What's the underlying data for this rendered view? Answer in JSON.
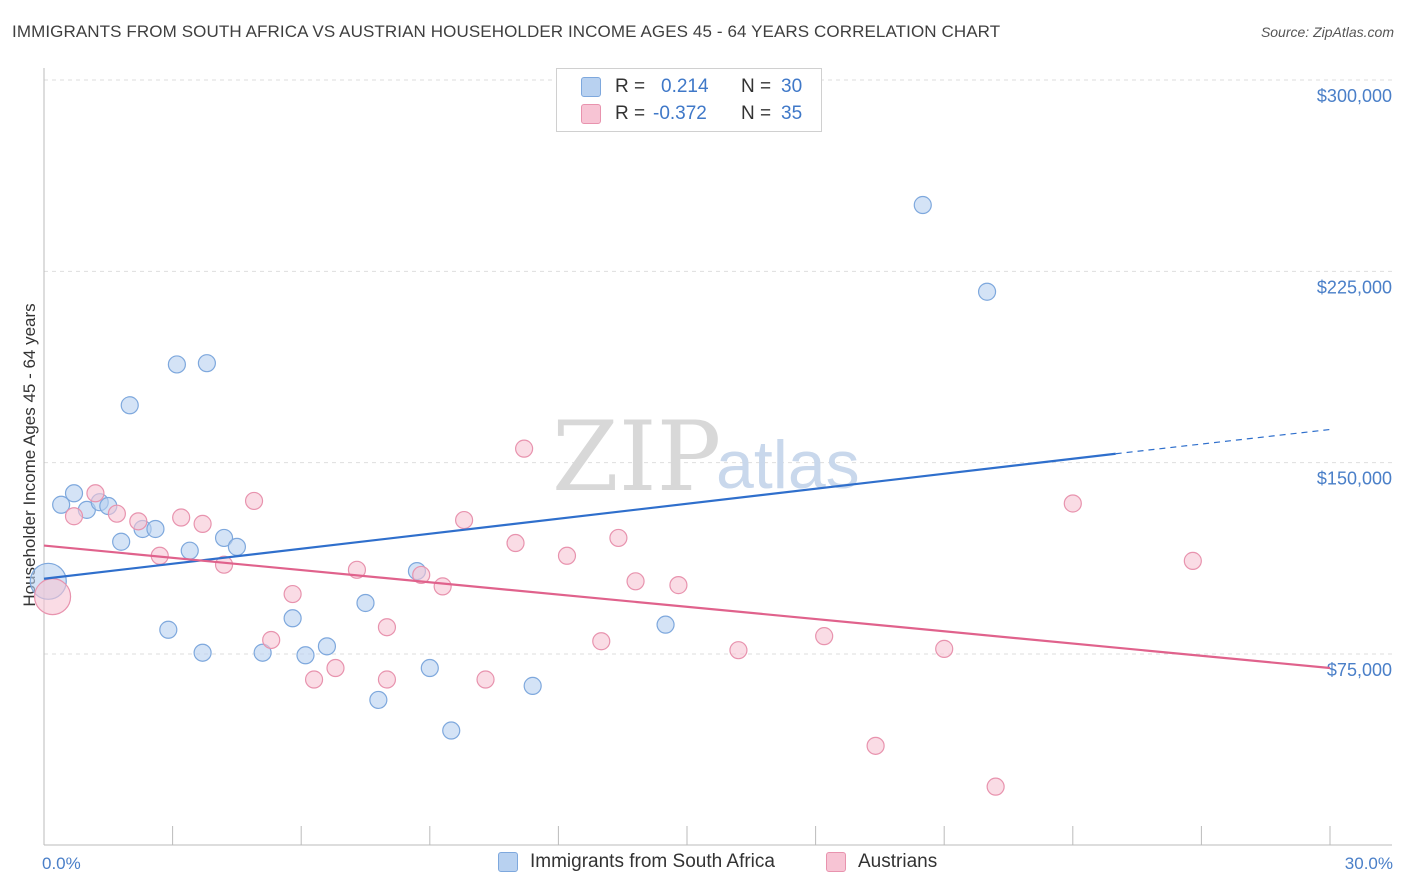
{
  "title": "IMMIGRANTS FROM SOUTH AFRICA VS AUSTRIAN HOUSEHOLDER INCOME AGES 45 - 64 YEARS CORRELATION CHART",
  "source": "Source: ZipAtlas.com",
  "watermark": {
    "zip": "ZIP",
    "atlas": "atlas"
  },
  "colors": {
    "blue_fill": "#b8d1f0",
    "blue_stroke": "#7ea8dd",
    "blue_line": "#2f6fcc",
    "pink_fill": "#f7c4d4",
    "pink_stroke": "#e893ae",
    "pink_line": "#e0628c",
    "axis_text": "#4a7fc8",
    "grid": "#dedede"
  },
  "legend": {
    "rows": [
      {
        "r_label": "R =",
        "r_value": "0.214",
        "n_label": "N =",
        "n_value": "30",
        "series": "blue"
      },
      {
        "r_label": "R =",
        "r_value": "-0.372",
        "n_label": "N =",
        "n_value": "35",
        "series": "pink"
      }
    ]
  },
  "chart_data": {
    "type": "scatter",
    "title": "IMMIGRANTS FROM SOUTH AFRICA VS AUSTRIAN HOUSEHOLDER INCOME AGES 45 - 64 YEARS CORRELATION CHART",
    "xlabel": "",
    "ylabel": "Householder Income Ages 45 - 64 years",
    "xlim": [
      0,
      30
    ],
    "ylim": [
      0,
      315000
    ],
    "x_tick_labels": [
      "0.0%",
      "30.0%"
    ],
    "y_ticks": [
      75000,
      150000,
      225000,
      300000
    ],
    "y_tick_labels": [
      "$75,000",
      "$150,000",
      "$225,000",
      "$300,000"
    ],
    "grid": "horizontal dashed",
    "legend_position": "top-center and bottom",
    "series": [
      {
        "name": "Immigrants from South Africa",
        "color": "blue",
        "r": 0.214,
        "n": 30,
        "trend": {
          "x0": 0,
          "y0": 104500,
          "x1": 25,
          "y1": 153500,
          "dashed_to_x": 30,
          "dashed_to_y": 163000
        },
        "points": [
          [
            0.1,
            103500,
            "large"
          ],
          [
            0.4,
            133500
          ],
          [
            0.7,
            138000
          ],
          [
            1.0,
            131500
          ],
          [
            1.3,
            134500
          ],
          [
            1.5,
            133000
          ],
          [
            1.8,
            119000
          ],
          [
            2.0,
            172500
          ],
          [
            2.3,
            124000
          ],
          [
            2.6,
            124000
          ],
          [
            2.9,
            84500
          ],
          [
            3.1,
            188500
          ],
          [
            3.4,
            115500
          ],
          [
            3.7,
            75500
          ],
          [
            3.8,
            189000
          ],
          [
            4.2,
            120500
          ],
          [
            4.5,
            117000
          ],
          [
            5.1,
            75500
          ],
          [
            5.8,
            89000
          ],
          [
            6.1,
            74500
          ],
          [
            6.6,
            78000
          ],
          [
            7.5,
            95000
          ],
          [
            7.8,
            57000
          ],
          [
            8.7,
            107500
          ],
          [
            9.0,
            69500
          ],
          [
            9.5,
            45000
          ],
          [
            11.4,
            62500
          ],
          [
            14.5,
            86500
          ],
          [
            20.5,
            251000
          ],
          [
            22.0,
            217000
          ]
        ]
      },
      {
        "name": "Austrians",
        "color": "pink",
        "r": -0.372,
        "n": 35,
        "trend": {
          "x0": 0,
          "y0": 117500,
          "x1": 30,
          "y1": 69500
        },
        "points": [
          [
            0.2,
            97500,
            "large"
          ],
          [
            0.7,
            129000
          ],
          [
            1.2,
            138000
          ],
          [
            1.7,
            130000
          ],
          [
            2.2,
            127000
          ],
          [
            2.7,
            113500
          ],
          [
            3.2,
            128500
          ],
          [
            3.7,
            126000
          ],
          [
            4.2,
            110000
          ],
          [
            4.9,
            135000
          ],
          [
            5.3,
            80500
          ],
          [
            5.8,
            98500
          ],
          [
            6.3,
            65000
          ],
          [
            6.8,
            69500
          ],
          [
            7.3,
            108000
          ],
          [
            8.0,
            65000
          ],
          [
            8.0,
            85500
          ],
          [
            8.8,
            106000
          ],
          [
            9.3,
            101500
          ],
          [
            9.8,
            127500
          ],
          [
            10.3,
            65000
          ],
          [
            11.0,
            118500
          ],
          [
            11.2,
            155500
          ],
          [
            12.2,
            113500
          ],
          [
            13.0,
            80000
          ],
          [
            13.4,
            120500
          ],
          [
            13.8,
            103500
          ],
          [
            14.8,
            102000
          ],
          [
            16.2,
            76500
          ],
          [
            18.2,
            82000
          ],
          [
            19.4,
            39000
          ],
          [
            21.0,
            77000
          ],
          [
            22.2,
            23000
          ],
          [
            24.0,
            134000
          ],
          [
            26.8,
            111500
          ]
        ]
      }
    ]
  },
  "bottom_legend": {
    "items": [
      {
        "label": "Immigrants from South Africa",
        "series": "blue"
      },
      {
        "label": "Austrians",
        "series": "pink"
      }
    ]
  }
}
